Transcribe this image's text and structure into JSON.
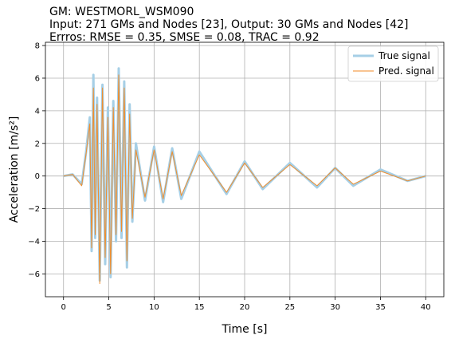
{
  "chart_data": {
    "type": "line",
    "title_lines": [
      "GM: WESTMORL_WSM090",
      "Input: 271 GMs and Nodes [23], Output: 30 GMs and Nodes [42]",
      "Errros: RMSE = 0.35, SMSE = 0.08, TRAC = 0.92"
    ],
    "xlabel": "Time [s]",
    "ylabel": "Acceleration [m/s²]",
    "xlim": [
      -2,
      42
    ],
    "ylim": [
      -7.4,
      8.2
    ],
    "xticks": [
      0,
      5,
      10,
      15,
      20,
      25,
      30,
      35,
      40
    ],
    "xtick_labels": [
      "0",
      "5",
      "10",
      "15",
      "20",
      "25",
      "30",
      "35",
      "40"
    ],
    "yticks": [
      -6,
      -4,
      -2,
      0,
      2,
      4,
      6,
      8
    ],
    "ytick_labels": [
      "−6",
      "−4",
      "−2",
      "0",
      "2",
      "4",
      "6",
      "8"
    ],
    "grid": true,
    "legend_position": "top-right",
    "series": [
      {
        "name": "True signal",
        "color": "#a6cfe6",
        "x": [
          0,
          1,
          2,
          2.5,
          2.9,
          3.1,
          3.3,
          3.5,
          3.7,
          4.0,
          4.3,
          4.6,
          4.9,
          5.2,
          5.5,
          5.8,
          6.1,
          6.4,
          6.7,
          7.0,
          7.3,
          7.6,
          8.0,
          9.0,
          10.0,
          11.0,
          12.0,
          13.0,
          15.0,
          18.0,
          20.0,
          22.0,
          25.0,
          28.0,
          30.0,
          32.0,
          35.0,
          38.0,
          40.0
        ],
        "values": [
          0,
          0.1,
          -0.5,
          1.5,
          3.6,
          -4.6,
          6.2,
          -3.8,
          4.8,
          -6.4,
          5.6,
          -5.4,
          4.2,
          -6.2,
          4.6,
          -4.0,
          6.6,
          -3.8,
          5.8,
          -5.6,
          4.4,
          -2.8,
          2.0,
          -1.5,
          1.8,
          -1.6,
          1.7,
          -1.4,
          1.5,
          -1.1,
          0.9,
          -0.8,
          0.8,
          -0.7,
          0.5,
          -0.6,
          0.4,
          -0.3,
          0.0
        ]
      },
      {
        "name": "Pred. signal",
        "color": "#f28a24",
        "x": [
          0,
          1,
          2,
          2.5,
          2.9,
          3.1,
          3.3,
          3.5,
          3.7,
          4.0,
          4.3,
          4.6,
          4.9,
          5.2,
          5.5,
          5.8,
          6.1,
          6.4,
          6.7,
          7.0,
          7.3,
          7.6,
          8.0,
          9.0,
          10.0,
          11.0,
          12.0,
          13.0,
          15.0,
          18.0,
          20.0,
          22.0,
          25.0,
          28.0,
          30.0,
          32.0,
          35.0,
          38.0,
          40.0
        ],
        "values": [
          0,
          0.1,
          -0.6,
          1.4,
          3.2,
          -4.4,
          5.4,
          -3.6,
          4.4,
          -6.6,
          5.4,
          -5.0,
          3.6,
          -6.0,
          4.2,
          -3.6,
          6.2,
          -3.4,
          5.4,
          -5.2,
          3.8,
          -2.6,
          1.6,
          -1.3,
          1.6,
          -1.4,
          1.5,
          -1.2,
          1.3,
          -1.0,
          0.8,
          -0.7,
          0.7,
          -0.6,
          0.5,
          -0.5,
          0.3,
          -0.3,
          0.0
        ]
      }
    ]
  }
}
